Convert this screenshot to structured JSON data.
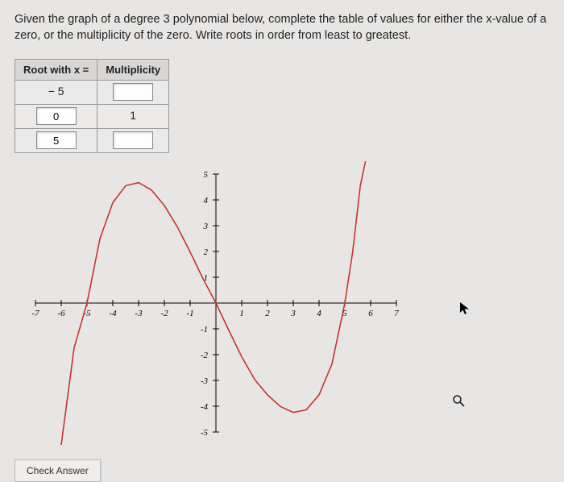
{
  "question": "Given the graph of a degree 3 polynomial below, complete the table of values for either the x-value of a zero, or the multiplicity of the zero. Write roots in order from least to greatest.",
  "table": {
    "headers": [
      "Root with x =",
      "Multiplicity"
    ],
    "rows": [
      {
        "root": "− 5",
        "root_static": true,
        "mult": "",
        "mult_static": false
      },
      {
        "root": "0",
        "root_static": false,
        "mult": "1",
        "mult_static": true
      },
      {
        "root": "5",
        "root_static": false,
        "mult": "",
        "mult_static": false
      }
    ]
  },
  "chart": {
    "type": "line",
    "xlim": [
      -7,
      7
    ],
    "ylim": [
      -5,
      5
    ],
    "xtick_step": 1,
    "ytick_step": 1,
    "axis_color": "#000000",
    "curve_color": "#c8332e",
    "background_color": "#e8e6e4",
    "points": [
      [
        -6.0,
        -9.0
      ],
      [
        -5.5,
        -1.73
      ],
      [
        -5.0,
        0.0
      ],
      [
        -4.5,
        2.49
      ],
      [
        -4.0,
        3.89
      ],
      [
        -3.5,
        4.55
      ],
      [
        -3.0,
        4.67
      ],
      [
        -2.5,
        4.38
      ],
      [
        -2.0,
        3.78
      ],
      [
        -1.5,
        2.96
      ],
      [
        -1.0,
        1.98
      ],
      [
        -0.5,
        0.94
      ],
      [
        0.0,
        0.0
      ],
      [
        0.5,
        -1.06
      ],
      [
        1.0,
        -2.08
      ],
      [
        1.5,
        -2.96
      ],
      [
        2.0,
        -3.56
      ],
      [
        2.5,
        -4.01
      ],
      [
        3.0,
        -4.24
      ],
      [
        3.5,
        -4.14
      ],
      [
        4.0,
        -3.56
      ],
      [
        4.5,
        -2.36
      ],
      [
        5.0,
        0.0
      ],
      [
        5.3,
        1.96
      ],
      [
        5.6,
        4.55
      ],
      [
        5.8,
        6.6
      ]
    ]
  },
  "check_button": "Check Answer",
  "cursor_glyph": "➤",
  "magnifier_glyph": "🔍"
}
